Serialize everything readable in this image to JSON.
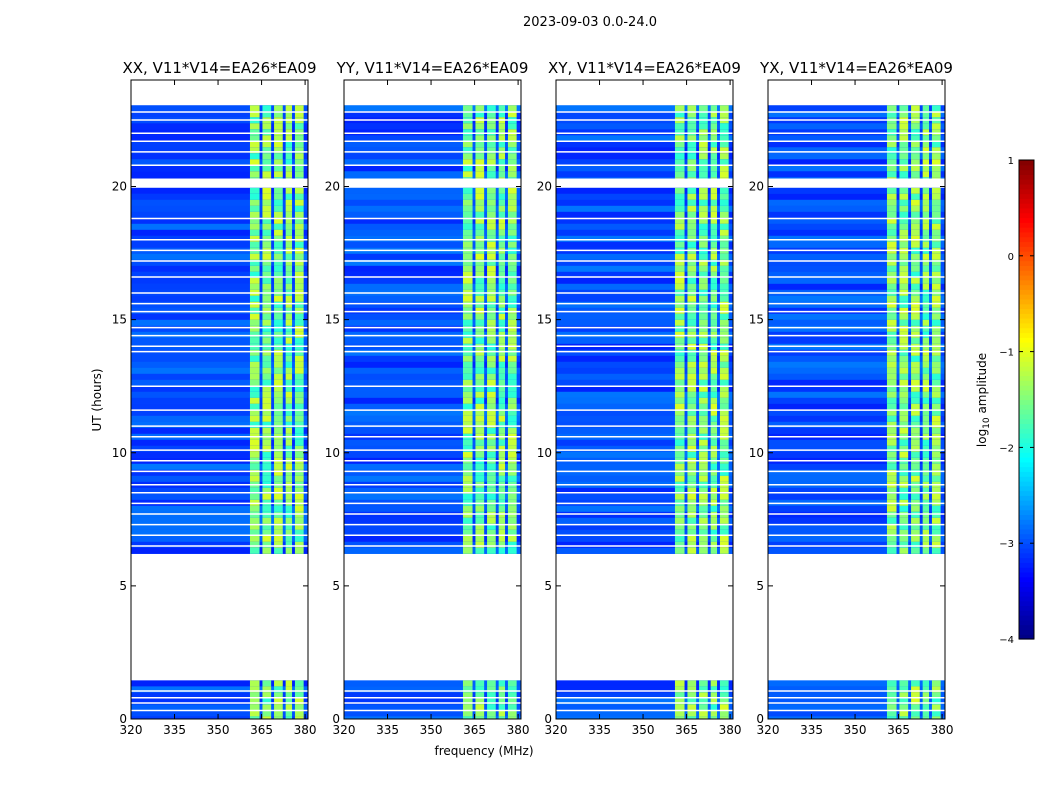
{
  "suptitle": "2023-09-03 0.0-24.0",
  "chart_data": {
    "type": "heatmap",
    "panels": [
      {
        "title": "XX, V11*V14=EA26*EA09",
        "pol": "XX"
      },
      {
        "title": "YY, V11*V14=EA26*EA09",
        "pol": "YY"
      },
      {
        "title": "XY, V11*V14=EA26*EA09",
        "pol": "XY"
      },
      {
        "title": "YX, V11*V14=EA26*EA09",
        "pol": "YX"
      }
    ],
    "xlabel": "frequency (MHz)",
    "ylabel": "UT (hours)",
    "xlim": [
      320,
      381
    ],
    "ylim": [
      0,
      24
    ],
    "xticks": [
      320,
      335,
      350,
      365,
      380
    ],
    "yticks": [
      0,
      5,
      10,
      15,
      20
    ],
    "colorbar": {
      "label": "log10 amplitude",
      "range": [
        -4,
        1
      ],
      "ticks": [
        1,
        0,
        -1,
        -2,
        -3,
        -4
      ],
      "tick_labels": [
        "1",
        "0",
        "−1",
        "−2",
        "−3",
        "−4"
      ],
      "colormap": "jet"
    },
    "data_time_ranges_hours": [
      [
        0.0,
        1.45
      ],
      [
        6.2,
        19.95
      ],
      [
        20.3,
        23.05
      ]
    ],
    "flagged_times_hours": [
      0.32,
      0.6,
      0.8,
      1.05,
      6.5,
      6.9,
      7.3,
      7.7,
      8.1,
      8.5,
      8.8,
      9.3,
      9.7,
      10.1,
      10.6,
      11.0,
      11.6,
      12.5,
      13.8,
      14.0,
      14.4,
      14.7,
      15.3,
      15.6,
      16.0,
      16.6,
      17.2,
      17.6,
      18.0,
      18.8,
      20.8,
      21.3,
      21.7,
      22.0,
      22.5,
      22.8
    ],
    "bright_band_mhz": [
      361,
      380
    ],
    "band_gaps_mhz": [
      364.8,
      368.8,
      372.8,
      376.0
    ],
    "background_log10_amplitude": -3.0,
    "band_log10_amplitude": -1.5
  }
}
